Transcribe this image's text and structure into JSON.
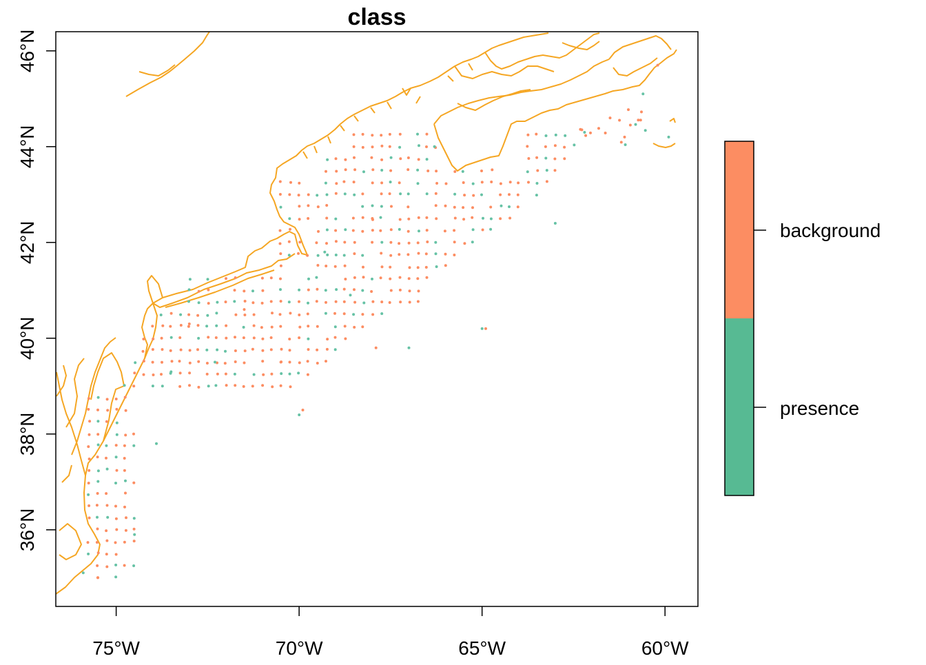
{
  "title": "class",
  "axes": {
    "xticks": [
      {
        "value": -75,
        "label": "75°W"
      },
      {
        "value": -70,
        "label": "70°W"
      },
      {
        "value": -65,
        "label": "65°W"
      },
      {
        "value": -60,
        "label": "60°W"
      }
    ],
    "yticks": [
      {
        "value": 36,
        "label": "36°N"
      },
      {
        "value": 38,
        "label": "38°N"
      },
      {
        "value": 40,
        "label": "40°N"
      },
      {
        "value": 42,
        "label": "42°N"
      },
      {
        "value": 44,
        "label": "44°N"
      },
      {
        "value": 46,
        "label": "46°N"
      }
    ],
    "xlim": [
      -76.65,
      -59.1
    ],
    "ylim": [
      34.4,
      46.4
    ]
  },
  "legend": {
    "items": [
      {
        "label": "background",
        "color": "#FC8D62"
      },
      {
        "label": "presence",
        "color": "#66C2A5"
      }
    ]
  },
  "colors": {
    "coastline": "#F5A623",
    "background": "#FC8D62",
    "presence": "#66C2A5"
  },
  "chart_data": {
    "type": "scatter",
    "title": "class",
    "xlabel": "",
    "ylabel": "",
    "xlim": [
      -76.65,
      -59.1
    ],
    "ylim": [
      34.4,
      46.4
    ],
    "grid": false,
    "legend_placement": "right",
    "series": [
      {
        "name": "background",
        "color": "#FC8D62"
      },
      {
        "name": "presence",
        "color": "#66C2A5"
      }
    ],
    "sample_points": [
      {
        "lon": -75.9,
        "lat": 35.1,
        "class": "presence"
      },
      {
        "lon": -75.5,
        "lat": 35.0,
        "class": "background"
      },
      {
        "lon": -74.5,
        "lat": 35.9,
        "class": "presence"
      },
      {
        "lon": -73.9,
        "lat": 37.8,
        "class": "presence"
      },
      {
        "lon": -73.5,
        "lat": 39.3,
        "class": "presence"
      },
      {
        "lon": -73.0,
        "lat": 40.3,
        "class": "background"
      },
      {
        "lon": -72.3,
        "lat": 39.5,
        "class": "presence"
      },
      {
        "lon": -71.5,
        "lat": 40.6,
        "class": "background"
      },
      {
        "lon": -70.5,
        "lat": 39.5,
        "class": "background"
      },
      {
        "lon": -70.0,
        "lat": 38.4,
        "class": "presence"
      },
      {
        "lon": -69.9,
        "lat": 38.5,
        "class": "background"
      },
      {
        "lon": -69.3,
        "lat": 41.8,
        "class": "presence"
      },
      {
        "lon": -68.6,
        "lat": 40.9,
        "class": "presence"
      },
      {
        "lon": -68.0,
        "lat": 42.5,
        "class": "background"
      },
      {
        "lon": -67.9,
        "lat": 39.8,
        "class": "background"
      },
      {
        "lon": -67.0,
        "lat": 39.8,
        "class": "presence"
      },
      {
        "lon": -66.3,
        "lat": 44.0,
        "class": "presence"
      },
      {
        "lon": -65.0,
        "lat": 40.2,
        "class": "presence"
      },
      {
        "lon": -64.9,
        "lat": 40.2,
        "class": "background"
      },
      {
        "lon": -63.0,
        "lat": 42.4,
        "class": "presence"
      },
      {
        "lon": -62.2,
        "lat": 44.3,
        "class": "presence"
      },
      {
        "lon": -61.5,
        "lat": 44.6,
        "class": "background"
      },
      {
        "lon": -60.6,
        "lat": 45.1,
        "class": "presence"
      },
      {
        "lon": -60.2,
        "lat": 45.7,
        "class": "background"
      },
      {
        "lon": -59.9,
        "lat": 44.2,
        "class": "presence"
      }
    ]
  }
}
